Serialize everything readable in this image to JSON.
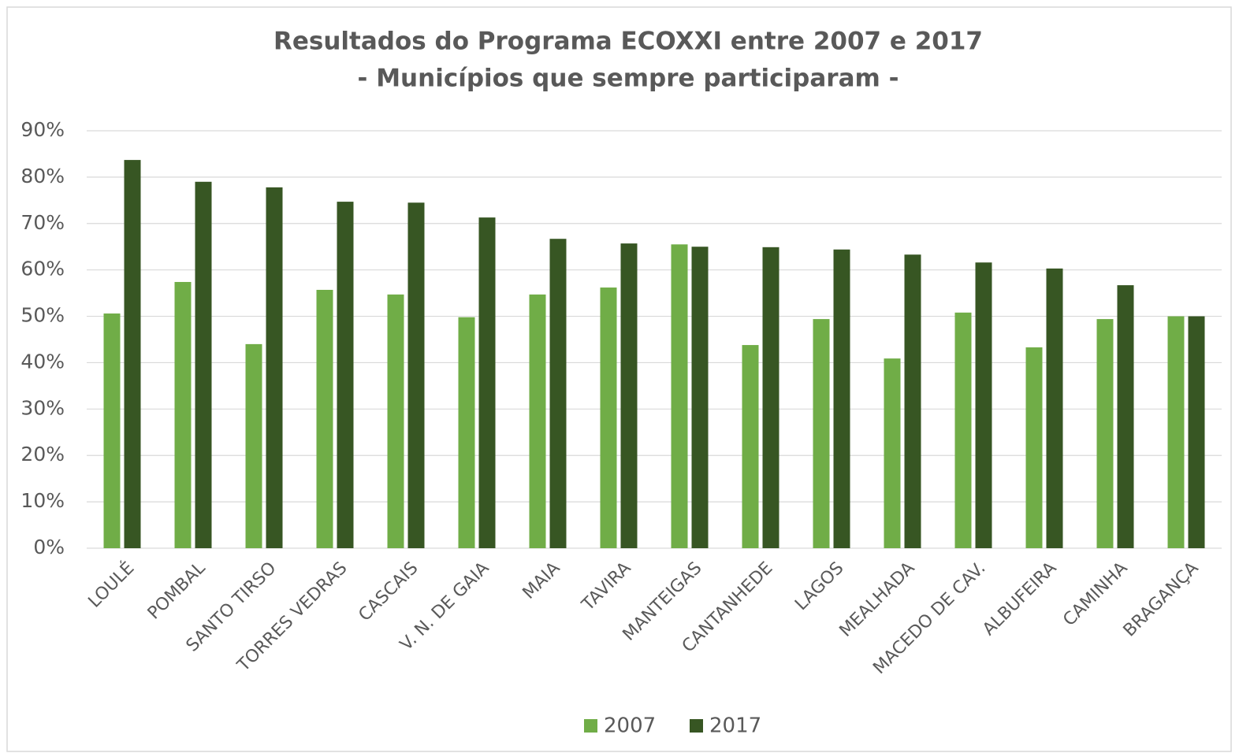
{
  "chart_data": {
    "type": "bar",
    "title": "Resultados do Programa ECOXXI entre 2007 e 2017",
    "subtitle": "- Municípios que sempre participaram -",
    "categories": [
      "LOULÉ",
      "POMBAL",
      "SANTO TIRSO",
      "TORRES VEDRAS",
      "CASCAIS",
      "V. N. DE GAIA",
      "MAIA",
      "TAVIRA",
      "MANTEIGAS",
      "CANTANHEDE",
      "LAGOS",
      "MEALHADA",
      "MACEDO DE CAV.",
      "ALBUFEIRA",
      "CAMINHA",
      "BRAGANÇA"
    ],
    "series": [
      {
        "name": "2007",
        "color": "#70ad47",
        "values": [
          50.6,
          57.4,
          44.0,
          55.7,
          54.7,
          49.8,
          54.7,
          56.2,
          65.5,
          43.8,
          49.4,
          40.9,
          50.8,
          43.3,
          49.4,
          50
        ]
      },
      {
        "name": "2017",
        "color": "#375623",
        "values": [
          83.7,
          79.0,
          77.8,
          74.7,
          74.5,
          71.3,
          66.7,
          65.7,
          65.0,
          64.9,
          64.4,
          63.3,
          61.6,
          60.3,
          56.7,
          50
        ]
      }
    ],
    "ylim": [
      0,
      90
    ],
    "yticks": [
      {
        "value": 0,
        "label": "0%"
      },
      {
        "value": 10,
        "label": "10%"
      },
      {
        "value": 20,
        "label": "20%"
      },
      {
        "value": 30,
        "label": "30%"
      },
      {
        "value": 40,
        "label": "40%"
      },
      {
        "value": 50,
        "label": "50%"
      },
      {
        "value": 60,
        "label": "60%"
      },
      {
        "value": 70,
        "label": "70%"
      },
      {
        "value": 80,
        "label": "80%"
      },
      {
        "value": 90,
        "label": "90%"
      }
    ],
    "grid": true,
    "legend": "bottom"
  }
}
